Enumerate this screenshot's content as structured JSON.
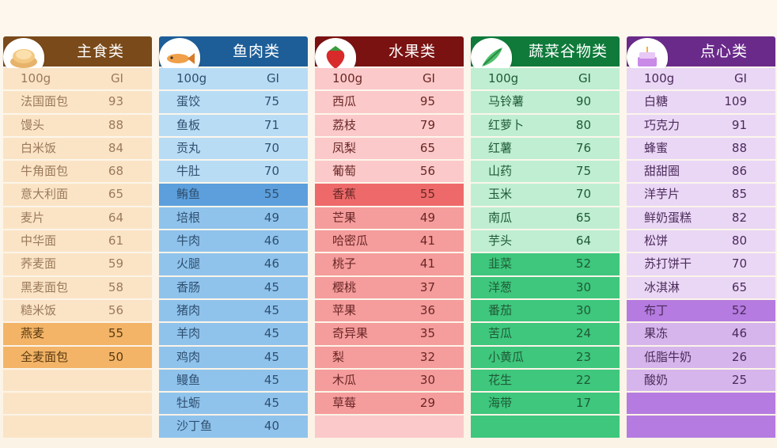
{
  "columns": [
    {
      "key": "c1",
      "title": "主食类",
      "icon": "bread-icon",
      "header": {
        "amount": "100g",
        "gi": "GI"
      },
      "rows": [
        {
          "name": "法国面包",
          "gi": "93",
          "tone": "light"
        },
        {
          "name": "馒头",
          "gi": "88",
          "tone": "light"
        },
        {
          "name": "白米饭",
          "gi": "84",
          "tone": "light"
        },
        {
          "name": "牛角面包",
          "gi": "68",
          "tone": "light"
        },
        {
          "name": "意大利面",
          "gi": "65",
          "tone": "light"
        },
        {
          "name": "麦片",
          "gi": "64",
          "tone": "light"
        },
        {
          "name": "中华面",
          "gi": "61",
          "tone": "light"
        },
        {
          "name": "荞麦面",
          "gi": "59",
          "tone": "light"
        },
        {
          "name": "黑麦面包",
          "gi": "58",
          "tone": "light"
        },
        {
          "name": "糙米饭",
          "gi": "56",
          "tone": "light"
        },
        {
          "name": "燕麦",
          "gi": "55",
          "tone": "strong"
        },
        {
          "name": "全麦面包",
          "gi": "50",
          "tone": "strong"
        },
        {
          "name": "",
          "gi": "",
          "tone": "light"
        },
        {
          "name": "",
          "gi": "",
          "tone": "light"
        },
        {
          "name": "",
          "gi": "",
          "tone": "light"
        }
      ]
    },
    {
      "key": "c2",
      "title": "鱼肉类",
      "icon": "fish-icon",
      "header": {
        "amount": "100g",
        "gi": "GI"
      },
      "rows": [
        {
          "name": "蛋饺",
          "gi": "75",
          "tone": "light"
        },
        {
          "name": "鱼板",
          "gi": "71",
          "tone": "light"
        },
        {
          "name": "贡丸",
          "gi": "70",
          "tone": "light"
        },
        {
          "name": "牛肚",
          "gi": "70",
          "tone": "light"
        },
        {
          "name": "鲔鱼",
          "gi": "55",
          "tone": "strong"
        },
        {
          "name": "培根",
          "gi": "49",
          "tone": "mid"
        },
        {
          "name": "牛肉",
          "gi": "46",
          "tone": "mid"
        },
        {
          "name": "火腿",
          "gi": "46",
          "tone": "mid"
        },
        {
          "name": "香肠",
          "gi": "45",
          "tone": "mid"
        },
        {
          "name": "猪肉",
          "gi": "45",
          "tone": "mid"
        },
        {
          "name": "羊肉",
          "gi": "45",
          "tone": "mid"
        },
        {
          "name": "鸡肉",
          "gi": "45",
          "tone": "mid"
        },
        {
          "name": "鳗鱼",
          "gi": "45",
          "tone": "mid"
        },
        {
          "name": "牡蛎",
          "gi": "45",
          "tone": "mid"
        },
        {
          "name": "沙丁鱼",
          "gi": "40",
          "tone": "mid"
        }
      ]
    },
    {
      "key": "c3",
      "title": "水果类",
      "icon": "strawberry-icon",
      "header": {
        "amount": "100g",
        "gi": "GI"
      },
      "rows": [
        {
          "name": "西瓜",
          "gi": "95",
          "tone": "light"
        },
        {
          "name": "荔枝",
          "gi": "79",
          "tone": "light"
        },
        {
          "name": "凤梨",
          "gi": "65",
          "tone": "light"
        },
        {
          "name": "葡萄",
          "gi": "56",
          "tone": "light"
        },
        {
          "name": "香蕉",
          "gi": "55",
          "tone": "strong"
        },
        {
          "name": "芒果",
          "gi": "49",
          "tone": "mid"
        },
        {
          "name": "哈密瓜",
          "gi": "41",
          "tone": "mid"
        },
        {
          "name": "桃子",
          "gi": "41",
          "tone": "mid"
        },
        {
          "name": "樱桃",
          "gi": "37",
          "tone": "mid"
        },
        {
          "name": "苹果",
          "gi": "36",
          "tone": "mid"
        },
        {
          "name": "奇异果",
          "gi": "35",
          "tone": "mid"
        },
        {
          "name": "梨",
          "gi": "32",
          "tone": "mid"
        },
        {
          "name": "木瓜",
          "gi": "30",
          "tone": "mid"
        },
        {
          "name": "草莓",
          "gi": "29",
          "tone": "mid"
        },
        {
          "name": "",
          "gi": "",
          "tone": "light"
        }
      ]
    },
    {
      "key": "c4",
      "title": "蔬菜谷物类",
      "icon": "vegetable-icon",
      "header": {
        "amount": "100g",
        "gi": "GI"
      },
      "rows": [
        {
          "name": "马铃薯",
          "gi": "90",
          "tone": "light"
        },
        {
          "name": "红萝卜",
          "gi": "80",
          "tone": "light"
        },
        {
          "name": "红薯",
          "gi": "76",
          "tone": "light"
        },
        {
          "name": "山药",
          "gi": "75",
          "tone": "light"
        },
        {
          "name": "玉米",
          "gi": "70",
          "tone": "light"
        },
        {
          "name": "南瓜",
          "gi": "65",
          "tone": "light"
        },
        {
          "name": "芋头",
          "gi": "64",
          "tone": "light"
        },
        {
          "name": "韭菜",
          "gi": "52",
          "tone": "strong"
        },
        {
          "name": "洋葱",
          "gi": "30",
          "tone": "strong"
        },
        {
          "name": "番茄",
          "gi": "30",
          "tone": "strong"
        },
        {
          "name": "苦瓜",
          "gi": "24",
          "tone": "strong"
        },
        {
          "name": "小黄瓜",
          "gi": "23",
          "tone": "strong"
        },
        {
          "name": "花生",
          "gi": "22",
          "tone": "strong"
        },
        {
          "name": "海带",
          "gi": "17",
          "tone": "strong"
        },
        {
          "name": "",
          "gi": "",
          "tone": "strong"
        }
      ]
    },
    {
      "key": "c5",
      "title": "点心类",
      "icon": "cake-icon",
      "header": {
        "amount": "100g",
        "gi": "GI"
      },
      "rows": [
        {
          "name": "白糖",
          "gi": "109",
          "tone": "light"
        },
        {
          "name": "巧克力",
          "gi": "91",
          "tone": "light"
        },
        {
          "name": "蜂蜜",
          "gi": "88",
          "tone": "light"
        },
        {
          "name": "甜甜圈",
          "gi": "86",
          "tone": "light"
        },
        {
          "name": "洋芋片",
          "gi": "85",
          "tone": "light"
        },
        {
          "name": "鲜奶蛋糕",
          "gi": "82",
          "tone": "light"
        },
        {
          "name": "松饼",
          "gi": "80",
          "tone": "light"
        },
        {
          "name": "苏打饼干",
          "gi": "70",
          "tone": "light"
        },
        {
          "name": "冰淇淋",
          "gi": "65",
          "tone": "light"
        },
        {
          "name": "布丁",
          "gi": "52",
          "tone": "strong"
        },
        {
          "name": "果冻",
          "gi": "46",
          "tone": "mid"
        },
        {
          "name": "低脂牛奶",
          "gi": "26",
          "tone": "mid"
        },
        {
          "name": "酸奶",
          "gi": "25",
          "tone": "mid"
        },
        {
          "name": "",
          "gi": "",
          "tone": "strong"
        },
        {
          "name": "",
          "gi": "",
          "tone": "strong"
        }
      ]
    }
  ]
}
